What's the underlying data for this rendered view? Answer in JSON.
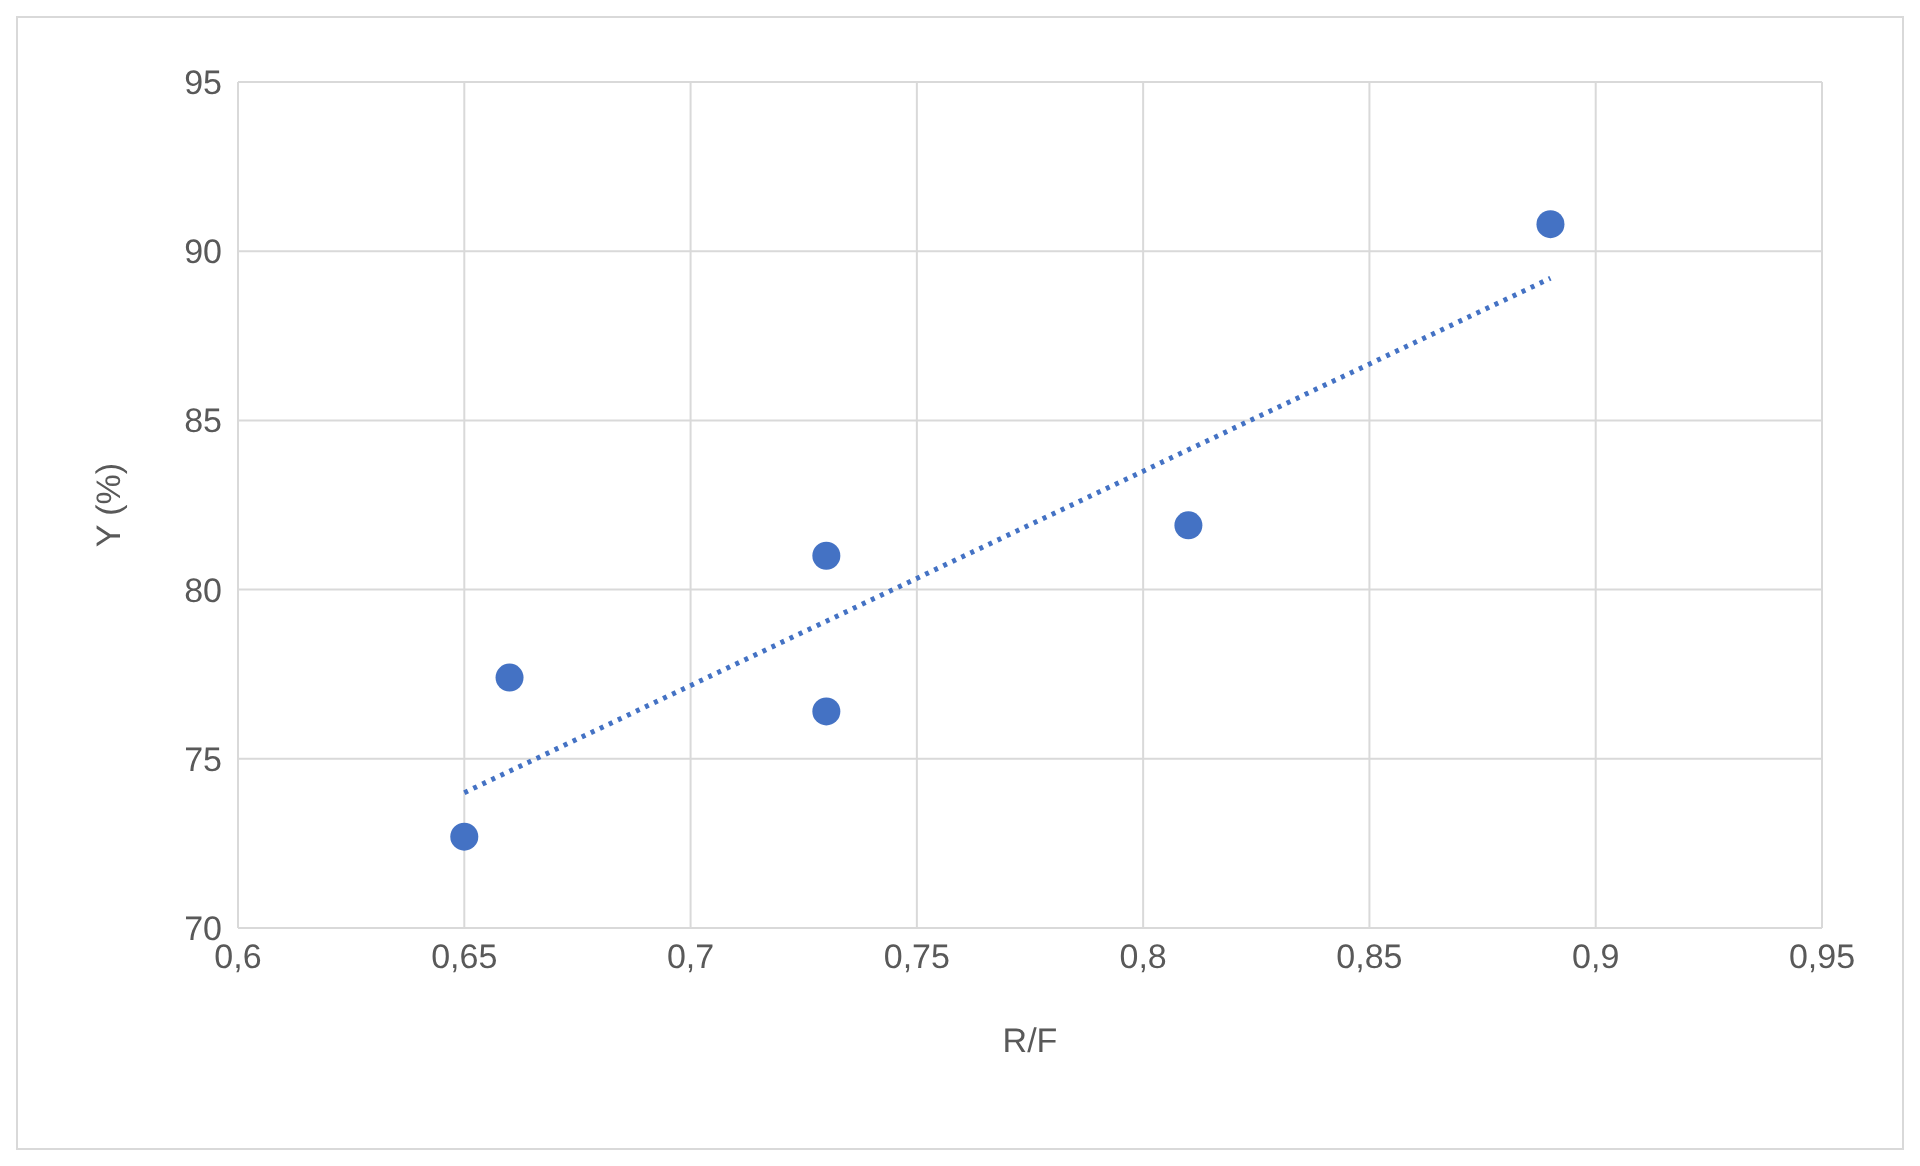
{
  "chart_data": {
    "type": "scatter",
    "xlabel": "R/F",
    "ylabel": "Y (%)",
    "series": [
      {
        "color": "#4472c4",
        "x": [
          0.65,
          0.66,
          0.73,
          0.73,
          0.81,
          0.89
        ],
        "values": [
          72.7,
          77.4,
          81.0,
          76.4,
          81.9,
          90.8
        ],
        "marker": "circle"
      },
      {
        "type": "line",
        "color": "#4472c4",
        "x": [
          0.65,
          0.89
        ],
        "values": [
          74.0,
          89.2
        ],
        "line_style": "dotted",
        "marker": "none"
      }
    ],
    "xlim": [
      0.6,
      0.95
    ],
    "xticks": [
      {
        "value": 0.6,
        "label": "0,6"
      },
      {
        "value": 0.65,
        "label": "0,65"
      },
      {
        "value": 0.7,
        "label": "0,7"
      },
      {
        "value": 0.75,
        "label": "0,75"
      },
      {
        "value": 0.8,
        "label": "0,8"
      },
      {
        "value": 0.85,
        "label": "0,85"
      },
      {
        "value": 0.9,
        "label": "0,9"
      },
      {
        "value": 0.95,
        "label": "0,95"
      }
    ],
    "ylim": [
      70,
      95
    ],
    "yticks": [
      70,
      75,
      80,
      85,
      90,
      95
    ],
    "grid": true,
    "legend": false
  }
}
